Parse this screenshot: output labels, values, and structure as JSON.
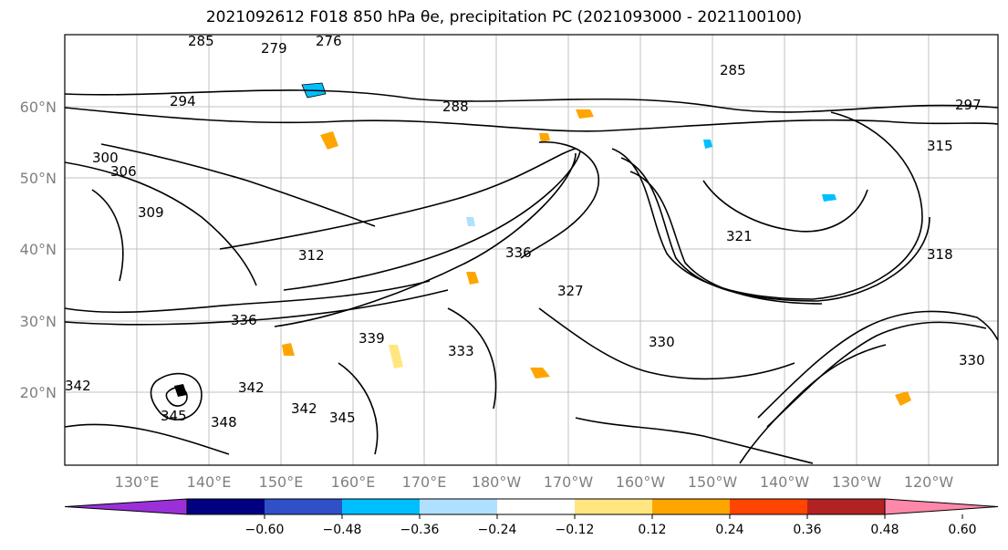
{
  "title": "2021092612 F018 850 hPa θe, precipitation PC (2021093000 - 2021100100)",
  "map": {
    "lat_labels": [
      "60°N",
      "50°N",
      "40°N",
      "30°N",
      "20°N"
    ],
    "lon_labels": [
      "130°E",
      "140°E",
      "150°E",
      "160°E",
      "170°E",
      "180°W",
      "170°W",
      "160°W",
      "150°W",
      "140°W",
      "130°W",
      "120°W"
    ],
    "contour_labels": [
      "276",
      "279",
      "285",
      "285",
      "288",
      "294",
      "297",
      "300",
      "306",
      "309",
      "312",
      "315",
      "318",
      "321",
      "327",
      "330",
      "330",
      "333",
      "336",
      "336",
      "339",
      "342",
      "342",
      "342",
      "345",
      "345",
      "348"
    ]
  },
  "colorbar": {
    "ticks": [
      "−0.60",
      "−0.48",
      "−0.36",
      "−0.24",
      "−0.12",
      "0.12",
      "0.24",
      "0.36",
      "0.48",
      "0.60"
    ],
    "colors": [
      "#9b30d9",
      "#000080",
      "#3050c8",
      "#00bfff",
      "#b0e0ff",
      "#ffffff",
      "#ffe680",
      "#ffa500",
      "#ff4500",
      "#b22222",
      "#ff88aa"
    ]
  }
}
